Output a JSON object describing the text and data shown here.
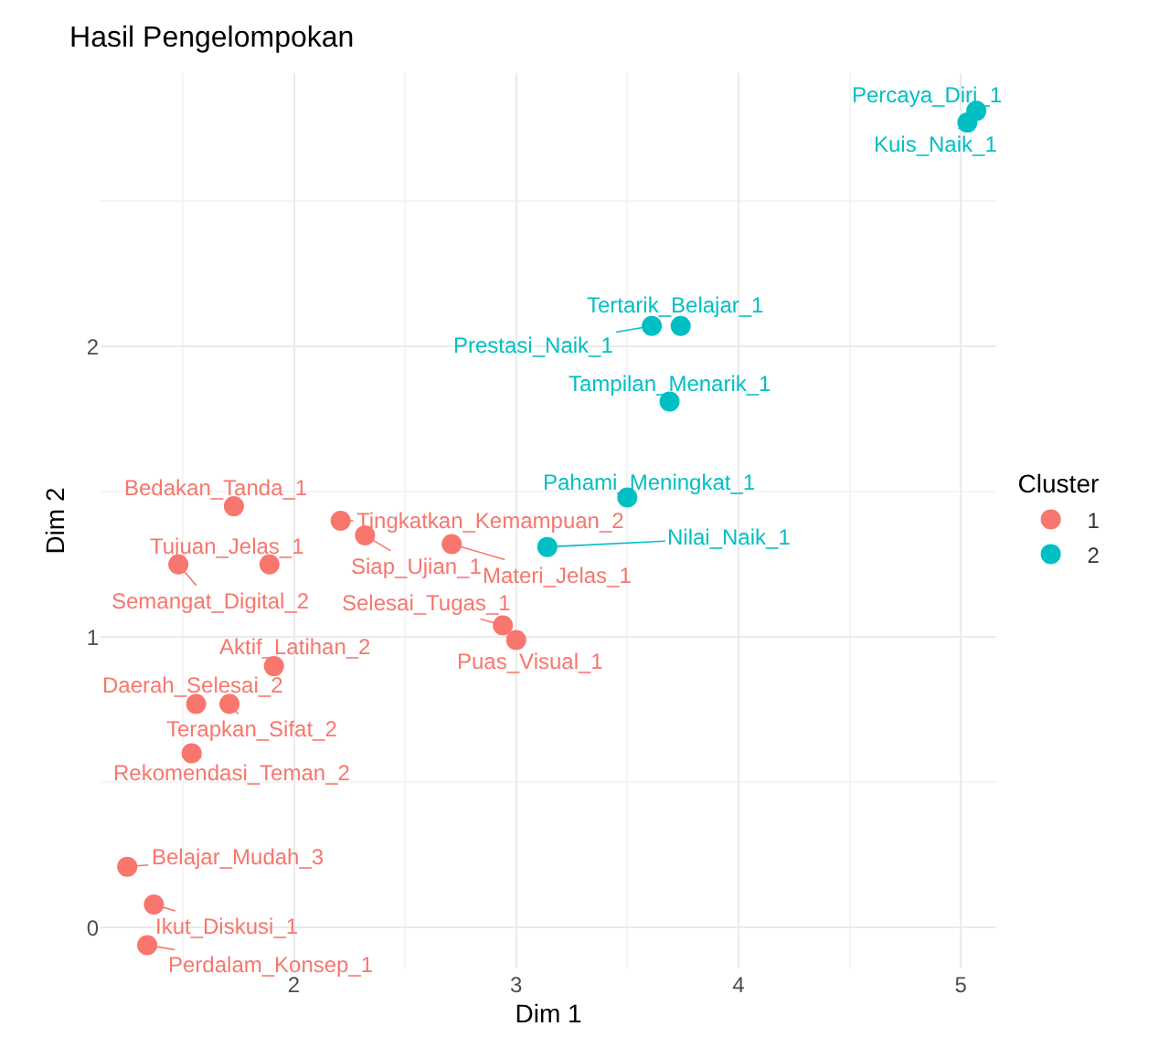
{
  "chart_data": {
    "type": "scatter",
    "title": "Hasil Pengelompokan",
    "xlabel": "Dim 1",
    "ylabel": "Dim 2",
    "legend_title": "Cluster",
    "xlim": [
      1.13,
      5.16
    ],
    "xticks": [
      2,
      3,
      4,
      5
    ],
    "ylim": [
      -0.14,
      2.94
    ],
    "yticks": [
      0,
      1,
      2
    ],
    "grid": true,
    "legend": "right",
    "marker": "circle",
    "series": [
      {
        "name": "1",
        "color": "#f8766d",
        "x": [
          1.73,
          2.21,
          2.32,
          2.71,
          1.89,
          1.48,
          2.94,
          3.0,
          1.91,
          1.56,
          1.71,
          1.54,
          1.25,
          1.37,
          1.34
        ],
        "values": [
          1.45,
          1.4,
          1.35,
          1.32,
          1.25,
          1.25,
          1.04,
          0.99,
          0.9,
          0.77,
          0.77,
          0.6,
          0.21,
          0.08,
          -0.06
        ]
      },
      {
        "name": "2",
        "color": "#00bfc4",
        "x": [
          5.07,
          5.03,
          3.74,
          3.61,
          3.69,
          3.5,
          3.14
        ],
        "values": [
          2.81,
          2.77,
          2.07,
          2.07,
          1.81,
          1.48,
          1.31
        ]
      }
    ],
    "annotations": [
      {
        "text": "Percaya_Diri_1",
        "x": 5.07,
        "y": 2.81
      },
      {
        "text": "Kuis_Naik_1",
        "x": 5.03,
        "y": 2.77
      },
      {
        "text": "Tertarik_Belajar_1",
        "x": 3.74,
        "y": 2.07
      },
      {
        "text": "Prestasi_Naik_1",
        "x": 3.61,
        "y": 2.07
      },
      {
        "text": "Tampilan_Menarik_1",
        "x": 3.69,
        "y": 1.81
      },
      {
        "text": "Pahami_Meningkat_1",
        "x": 3.5,
        "y": 1.48
      },
      {
        "text": "Nilai_Naik_1",
        "x": 3.14,
        "y": 1.31
      },
      {
        "text": "Bedakan_Tanda_1",
        "x": 1.73,
        "y": 1.45
      },
      {
        "text": "Tingkatkan_Kemampuan_2",
        "x": 2.21,
        "y": 1.4
      },
      {
        "text": "Siap_Ujian_1",
        "x": 2.32,
        "y": 1.35
      },
      {
        "text": "Materi_Jelas_1",
        "x": 2.71,
        "y": 1.32
      },
      {
        "text": "Tujuan_Jelas_1",
        "x": 1.89,
        "y": 1.25
      },
      {
        "text": "Semangat_Digital_2",
        "x": 1.48,
        "y": 1.25
      },
      {
        "text": "Selesai_Tugas_1",
        "x": 2.94,
        "y": 1.04
      },
      {
        "text": "Puas_Visual_1",
        "x": 3.0,
        "y": 0.99
      },
      {
        "text": "Aktif_Latihan_2",
        "x": 1.91,
        "y": 0.9
      },
      {
        "text": "Daerah_Selesai_2",
        "x": 1.56,
        "y": 0.77
      },
      {
        "text": "Terapkan_Sifat_2",
        "x": 1.71,
        "y": 0.77
      },
      {
        "text": "Rekomendasi_Teman_2",
        "x": 1.54,
        "y": 0.6
      },
      {
        "text": "Belajar_Mudah_3",
        "x": 1.25,
        "y": 0.21
      },
      {
        "text": "Ikut_Diskusi_1",
        "x": 1.37,
        "y": 0.08
      },
      {
        "text": "Perdalam_Konsep_1",
        "x": 1.34,
        "y": -0.06
      }
    ]
  }
}
